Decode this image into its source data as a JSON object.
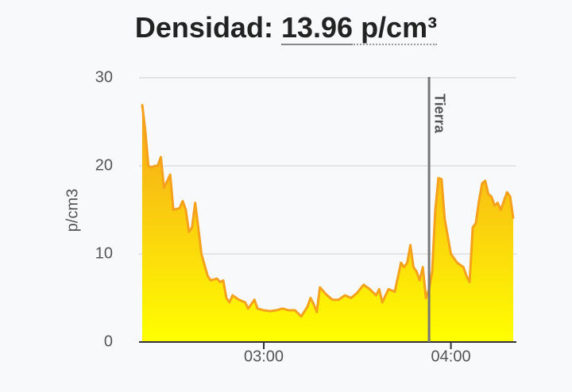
{
  "chart_data": {
    "type": "area",
    "title": "Densidad:",
    "reading": "13.96",
    "reading_unit": "p/cm³",
    "ylabel": "p/cm3",
    "x": [
      "02:21",
      "02:22",
      "02:23",
      "02:24",
      "02:25",
      "02:26",
      "02:27",
      "02:28",
      "02:30",
      "02:31",
      "02:33",
      "02:34",
      "02:35",
      "02:36",
      "02:37",
      "02:38",
      "02:39",
      "02:40",
      "02:42",
      "02:43",
      "02:45",
      "02:46",
      "02:47",
      "02:48",
      "02:49",
      "02:50",
      "02:52",
      "02:54",
      "02:55",
      "02:57",
      "02:58",
      "03:00",
      "03:02",
      "03:04",
      "03:06",
      "03:08",
      "03:10",
      "03:12",
      "03:14",
      "03:15",
      "03:16",
      "03:17",
      "03:18",
      "03:20",
      "03:22",
      "03:24",
      "03:26",
      "03:28",
      "03:30",
      "03:32",
      "03:34",
      "03:36",
      "03:37",
      "03:38",
      "03:40",
      "03:42",
      "03:44",
      "03:45",
      "03:46",
      "03:47",
      "03:48",
      "03:49",
      "03:50",
      "03:51",
      "03:52",
      "03:53",
      "03:54",
      "03:55",
      "03:56",
      "03:57",
      "03:58",
      "03:59",
      "04:00",
      "04:02",
      "04:04",
      "04:05",
      "04:06",
      "04:07",
      "04:08",
      "04:09",
      "04:10",
      "04:11",
      "04:12",
      "04:13",
      "04:14",
      "04:15",
      "04:16",
      "04:17",
      "04:18",
      "04:19",
      "04:20"
    ],
    "values": [
      27,
      24,
      20,
      19.8,
      20,
      20,
      21,
      17.5,
      19,
      15,
      15.2,
      16,
      15,
      12.5,
      13,
      15.8,
      13,
      10,
      7.5,
      7,
      7.2,
      6.8,
      7,
      5,
      4.5,
      5.3,
      4.8,
      4.5,
      3.8,
      4.8,
      3.8,
      3.6,
      3.5,
      3.6,
      3.8,
      3.6,
      3.6,
      2.9,
      4,
      5,
      4.3,
      3.4,
      6.2,
      5.4,
      4.8,
      4.8,
      5.3,
      5,
      5.6,
      6.5,
      6,
      5.3,
      6,
      4.5,
      6,
      5.7,
      9,
      8.5,
      9,
      11,
      8.5,
      8,
      7,
      8.5,
      5,
      6,
      8,
      15,
      18.6,
      18.5,
      14,
      12,
      10,
      9,
      8.5,
      7.5,
      6.8,
      13,
      13.5,
      16,
      18,
      18.3,
      16.8,
      16.5,
      15.5,
      15.8,
      15,
      16,
      17,
      16.5,
      14
    ],
    "color": "#f5a11c",
    "xlim": [
      "02:20",
      "04:21"
    ],
    "xticks": [
      "03:00",
      "04:00"
    ],
    "ylim": [
      0,
      30
    ],
    "yticks": [
      0,
      10,
      20,
      30
    ],
    "grid": true,
    "annotations": [
      {
        "text": "Tierra",
        "x": "03:53"
      }
    ]
  }
}
